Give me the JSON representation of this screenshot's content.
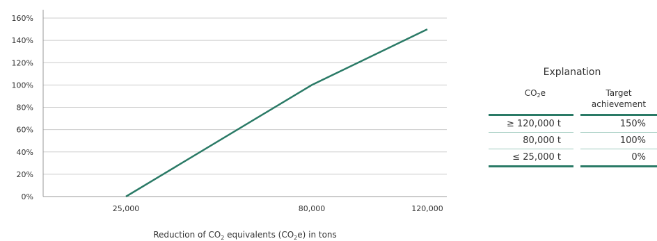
{
  "chart_data": {
    "type": "line",
    "x": [
      25000,
      80000,
      120000
    ],
    "xticks": [
      25000,
      80000,
      120000
    ],
    "xtick_labels": [
      "25,000",
      "80,000",
      "120,000"
    ],
    "series": [
      {
        "values": [
          0,
          100,
          150
        ],
        "color": "#2a7a66"
      }
    ],
    "xlim": [
      0,
      120000
    ],
    "ylim": [
      0,
      160
    ],
    "yticks": [
      0,
      20,
      40,
      60,
      80,
      100,
      120,
      140,
      160
    ],
    "ytick_labels": [
      "0%",
      "20%",
      "40%",
      "60%",
      "80%",
      "100%",
      "120%",
      "140%",
      "160%"
    ],
    "xlabel_parts": [
      "Reduction of CO",
      "2",
      " equivalents (CO",
      "2",
      "e) in tons"
    ],
    "grid": "horizontal"
  },
  "explanation": {
    "title": "Explanation",
    "col1_header": [
      "CO",
      "2",
      "e"
    ],
    "col2_header_line1": "Target",
    "col2_header_line2": "achievement",
    "rows": [
      {
        "co2e": "≥ 120,000 t",
        "target": "150%"
      },
      {
        "co2e": "80,000 t",
        "target": "100%"
      },
      {
        "co2e": "≤ 25,000 t",
        "target": "0%"
      }
    ],
    "accent_color": "#2a7a66"
  }
}
